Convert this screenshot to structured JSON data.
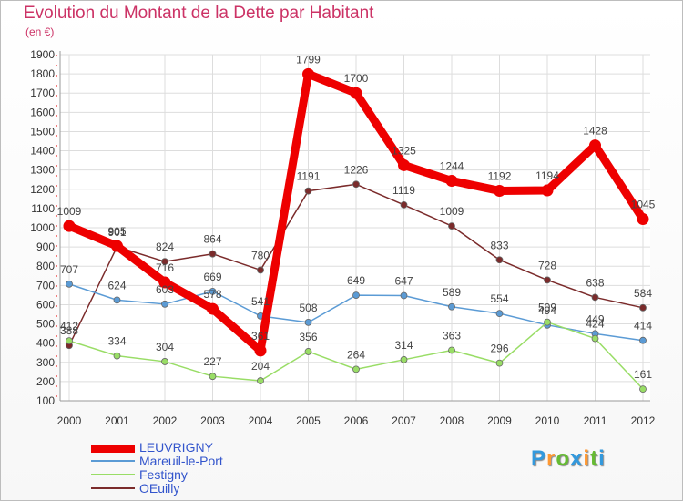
{
  "header": {
    "title": "Evolution du Montant de la Dette par Habitant",
    "unit": "(en €)"
  },
  "chart_data": {
    "type": "line",
    "title": "Evolution du Montant de la Dette par Habitant",
    "ylabel": "(en €)",
    "xlabel": "",
    "x": [
      "2000",
      "2001",
      "2002",
      "2003",
      "2004",
      "2005",
      "2006",
      "2007",
      "2008",
      "2009",
      "2010",
      "2011",
      "2012"
    ],
    "ylim": [
      100,
      1900
    ],
    "yticks": [
      100,
      200,
      300,
      400,
      500,
      600,
      700,
      800,
      900,
      1000,
      1100,
      1200,
      1300,
      1400,
      1500,
      1600,
      1700,
      1800,
      1900
    ],
    "grid": true,
    "legend_position": "bottom-left",
    "series": [
      {
        "name": "LEUVRIGNY",
        "color": "#ee0000",
        "values": [
          1009,
          905,
          716,
          578,
          361,
          1799,
          1700,
          1325,
          1244,
          1192,
          1194,
          1428,
          1045
        ]
      },
      {
        "name": "Mareuil-le-Port",
        "color": "#5b9bd5",
        "values": [
          707,
          624,
          603,
          669,
          541,
          508,
          649,
          647,
          589,
          554,
          494,
          449,
          414
        ]
      },
      {
        "name": "Festigny",
        "color": "#99dd66",
        "values": [
          412,
          334,
          304,
          227,
          204,
          356,
          264,
          314,
          363,
          296,
          509,
          424,
          161
        ]
      },
      {
        "name": "OEuilly",
        "color": "#7b2b2b",
        "values": [
          388,
          901,
          824,
          864,
          780,
          1191,
          1226,
          1119,
          1009,
          833,
          728,
          638,
          584
        ]
      }
    ]
  },
  "legend": {
    "items": [
      {
        "label": "LEUVRIGNY",
        "color": "#ee0000"
      },
      {
        "label": "Mareuil-le-Port",
        "color": "#5b9bd5"
      },
      {
        "label": "Festigny",
        "color": "#99dd66"
      },
      {
        "label": "OEuilly",
        "color": "#7b2b2b"
      }
    ]
  },
  "logo": {
    "letters": [
      "P",
      "r",
      "o",
      "x",
      "i",
      "t",
      "i"
    ],
    "colors": [
      "#3399dd",
      "#ff9933",
      "#66bb33",
      "#3399dd",
      "#ff9933",
      "#66bb33",
      "#3399dd"
    ]
  }
}
